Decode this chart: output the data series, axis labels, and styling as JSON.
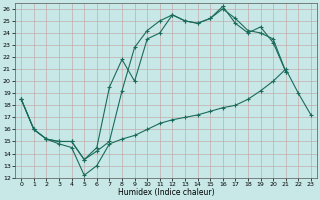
{
  "xlabel": "Humidex (Indice chaleur)",
  "background_color": "#c8e8e8",
  "grid_color": "#b0c8c8",
  "line_color": "#1a6b5a",
  "xlim": [
    -0.5,
    23.5
  ],
  "ylim": [
    12,
    26.5
  ],
  "xticks": [
    0,
    1,
    2,
    3,
    4,
    5,
    6,
    7,
    8,
    9,
    10,
    11,
    12,
    13,
    14,
    15,
    16,
    17,
    18,
    19,
    20,
    21,
    22,
    23
  ],
  "yticks": [
    12,
    13,
    14,
    15,
    16,
    17,
    18,
    19,
    20,
    21,
    22,
    23,
    24,
    25,
    26
  ],
  "series": [
    {
      "x": [
        0,
        1,
        2,
        3,
        4,
        5,
        6,
        7,
        8,
        9,
        10,
        11,
        12,
        13,
        14,
        15,
        16,
        17,
        18,
        19,
        20,
        21,
        22,
        23
      ],
      "y": [
        18.5,
        16.0,
        15.2,
        14.8,
        14.5,
        12.2,
        13.0,
        14.8,
        15.2,
        15.5,
        16.0,
        16.5,
        16.8,
        17.0,
        17.2,
        17.5,
        17.8,
        18.0,
        18.5,
        19.2,
        20.0,
        21.0,
        19.0,
        17.2
      ]
    },
    {
      "x": [
        0,
        1,
        2,
        3,
        4,
        5,
        6,
        7,
        8,
        9,
        10,
        11,
        12,
        13,
        14,
        15,
        16,
        17,
        18,
        19,
        20,
        21
      ],
      "y": [
        18.5,
        16.0,
        15.2,
        15.0,
        15.0,
        13.5,
        14.5,
        19.5,
        21.8,
        20.0,
        23.5,
        24.0,
        25.5,
        25.0,
        24.8,
        25.2,
        26.0,
        25.2,
        24.2,
        24.0,
        23.5,
        20.8
      ]
    },
    {
      "x": [
        0,
        1,
        2,
        3,
        4,
        5,
        6,
        7,
        8,
        9,
        10,
        11,
        12,
        13,
        14,
        15,
        16,
        17,
        18,
        19,
        20,
        21
      ],
      "y": [
        18.5,
        16.0,
        15.2,
        15.0,
        15.0,
        13.5,
        14.2,
        15.0,
        19.2,
        22.8,
        24.2,
        25.0,
        25.5,
        25.0,
        24.8,
        25.2,
        26.2,
        24.8,
        24.0,
        24.5,
        23.2,
        20.8
      ]
    }
  ]
}
